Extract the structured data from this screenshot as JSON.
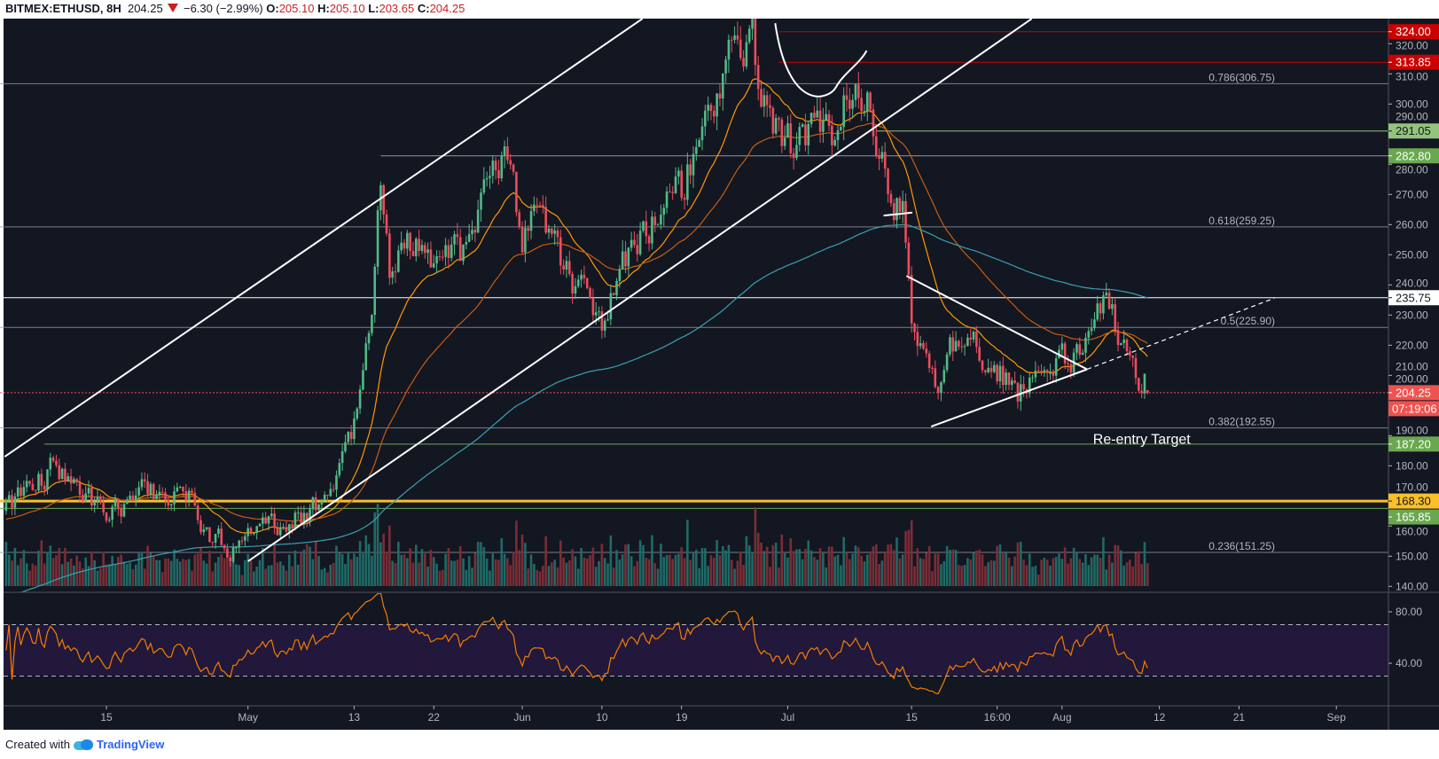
{
  "header": {
    "symbol": "BITMEX:ETHUSD, 8H",
    "last": "204.25",
    "change": "−6.30 (−2.99%)",
    "o_label": "O:",
    "o": "205.10",
    "h_label": "H:",
    "h": "205.10",
    "l_label": "L:",
    "l": "203.65",
    "c_label": "C:",
    "c": "204.25"
  },
  "footer": {
    "created_with": "Created with",
    "brand": "TradingView"
  },
  "colors": {
    "background": "#131722",
    "up": "#53b987",
    "down": "#eb4d5c",
    "ema_fast": "#ff9800",
    "ema_slow": "#c65d12",
    "ma_long": "#3aa0b0",
    "rsi": "#f57c00"
  },
  "chart_data": {
    "type": "candlestick",
    "title": "BITMEX:ETHUSD, 8H",
    "ylim": [
      137,
      326
    ],
    "price_ticks": [
      "140.00",
      "150.00",
      "160.00",
      "170.00",
      "180.00",
      "190.00",
      "200.00",
      "210.00",
      "220.00",
      "230.00",
      "240.00",
      "250.00",
      "260.00",
      "270.00",
      "280.00",
      "290.00",
      "300.00",
      "310.00",
      "320.00"
    ],
    "time_ticks": [
      {
        "label": "15",
        "date": "2019-04-15T00:00"
      },
      {
        "label": "May",
        "date": "2019-05-01T00:00"
      },
      {
        "label": "13",
        "date": "2019-05-13T00:00"
      },
      {
        "label": "22",
        "date": "2019-05-22T00:00"
      },
      {
        "label": "Jun",
        "date": "2019-06-01T00:00"
      },
      {
        "label": "10",
        "date": "2019-06-10T00:00"
      },
      {
        "label": "19",
        "date": "2019-06-19T00:00"
      },
      {
        "label": "Jul",
        "date": "2019-07-01T00:00"
      },
      {
        "label": "15",
        "date": "2019-07-15T00:00"
      },
      {
        "label": "16:00",
        "date": "2019-07-24T16:00"
      },
      {
        "label": "Aug",
        "date": "2019-08-01T00:00"
      },
      {
        "label": "12",
        "date": "2019-08-12T00:00"
      },
      {
        "label": "21",
        "date": "2019-08-21T00:00"
      },
      {
        "label": "Sep",
        "date": "2019-09-01T00:00"
      }
    ],
    "rsi_ticks": [
      "80.00",
      "40.00"
    ],
    "rsi_band": [
      30,
      70
    ],
    "price_anchors": [
      [
        "2019-04-03T16:00",
        165
      ],
      [
        "2019-04-09",
        180
      ],
      [
        "2019-04-12",
        172
      ],
      [
        "2019-04-15",
        165
      ],
      [
        "2019-04-20",
        172
      ],
      [
        "2019-04-25",
        168
      ],
      [
        "2019-04-27",
        155
      ],
      [
        "2019-04-29",
        153
      ],
      [
        "2019-05-02",
        158
      ],
      [
        "2019-05-06",
        160
      ],
      [
        "2019-05-09",
        168
      ],
      [
        "2019-05-11",
        175
      ],
      [
        "2019-05-13",
        193
      ],
      [
        "2019-05-15",
        235
      ],
      [
        "2019-05-16",
        272
      ],
      [
        "2019-05-17",
        245
      ],
      [
        "2019-05-19",
        255
      ],
      [
        "2019-05-22",
        245
      ],
      [
        "2019-05-25",
        250
      ],
      [
        "2019-05-28",
        270
      ],
      [
        "2019-05-30",
        282
      ],
      [
        "2019-06-01",
        255
      ],
      [
        "2019-06-03",
        265
      ],
      [
        "2019-06-06",
        245
      ],
      [
        "2019-06-10",
        228
      ],
      [
        "2019-06-13",
        250
      ],
      [
        "2019-06-16",
        262
      ],
      [
        "2019-06-19",
        270
      ],
      [
        "2019-06-21",
        290
      ],
      [
        "2019-06-23",
        308
      ],
      [
        "2019-06-27",
        322
      ],
      [
        "2019-06-28",
        300
      ],
      [
        "2019-06-30",
        290
      ],
      [
        "2019-07-02",
        285
      ],
      [
        "2019-07-04",
        295
      ],
      [
        "2019-07-06",
        290
      ],
      [
        "2019-07-08",
        305
      ],
      [
        "2019-07-10",
        305
      ],
      [
        "2019-07-11",
        285
      ],
      [
        "2019-07-13",
        270
      ],
      [
        "2019-07-14",
        265
      ],
      [
        "2019-07-15",
        230
      ],
      [
        "2019-07-18",
        200
      ],
      [
        "2019-07-19",
        220
      ],
      [
        "2019-07-21",
        225
      ],
      [
        "2019-07-24",
        215
      ],
      [
        "2019-07-27",
        205
      ],
      [
        "2019-07-30",
        210
      ],
      [
        "2019-08-02",
        215
      ],
      [
        "2019-08-04",
        222
      ],
      [
        "2019-08-06",
        234
      ],
      [
        "2019-08-08",
        222
      ],
      [
        "2019-08-09",
        215
      ],
      [
        "2019-08-10",
        210
      ],
      [
        "2019-08-10T16:00",
        204.25
      ]
    ],
    "last_candle": {
      "open": 205.1,
      "high": 205.1,
      "low": 203.65,
      "close": 204.25
    },
    "countdown": "07:19:06",
    "levels": [
      {
        "price": 324.0,
        "label": "324.00",
        "color": "#cc0000",
        "text_color": "#ffffff",
        "line": "#cc0000",
        "from": "2019-06-30T00:00"
      },
      {
        "price": 313.85,
        "label": "313.85",
        "color": "#cc0000",
        "text_color": "#ffffff",
        "line": "#cc0000",
        "from": "2019-06-30T00:00"
      },
      {
        "price": 306.75,
        "fib": "0.786(306.75)",
        "line": "#9598a1"
      },
      {
        "price": 291.05,
        "label": "291.05",
        "color": "#93c47d",
        "text_color": "#131722",
        "line": "#93c47d",
        "from": "2019-07-11T00:00"
      },
      {
        "price": 282.8,
        "label": "282.80",
        "color": "#6aa84f",
        "text_color": "#ffffff",
        "line": "#9598a1",
        "from": "2019-05-16T00:00"
      },
      {
        "price": 259.25,
        "fib": "0.618(259.25)",
        "line": "#9598a1"
      },
      {
        "price": 235.75,
        "label": "235.75",
        "color": "#ffffff",
        "text_color": "#131722",
        "line": "#ffffff"
      },
      {
        "price": 225.9,
        "fib": "0.5(225.90)",
        "line": "#9598a1"
      },
      {
        "price": 204.25,
        "label": "204.25",
        "color": "#ef5350",
        "text_color": "#ffffff",
        "line": "#ef5350",
        "dotted": true
      },
      {
        "price": 192.55,
        "fib": "0.382(192.55)",
        "line": "#9598a1"
      },
      {
        "price": 187.2,
        "label": "187.20",
        "color": "#6aa84f",
        "text_color": "#ffffff",
        "line": "#6aa84f",
        "from": "2019-04-08T00:00"
      },
      {
        "price": 168.3,
        "label": "168.30",
        "color": "#f9c02a",
        "text_color": "#131722",
        "line": "#f9c02a",
        "thick": true
      },
      {
        "price": 165.85,
        "label": "165.85",
        "color": "#6aa84f",
        "text_color": "#ffffff",
        "line": "#6aa84f"
      },
      {
        "price": 151.25,
        "fib": "0.236(151.25)",
        "line": "#9598a1"
      }
    ],
    "trendlines": [
      {
        "name": "upper-channel-line",
        "points": [
          [
            "2019-04-03T12:00",
            183
          ],
          [
            "2019-06-14T14:00",
            328.3
          ]
        ]
      },
      {
        "name": "lower-channel-line",
        "points": [
          [
            "2019-05-01T00:00",
            148.3
          ],
          [
            "2019-07-28T14:00",
            328.3
          ]
        ]
      },
      {
        "name": "flag-line",
        "points": [
          [
            "2019-07-11T20:00",
            263
          ],
          [
            "2019-07-15T02:00",
            264
          ]
        ]
      },
      {
        "name": "triangle-upper-line",
        "points": [
          [
            "2019-07-14T10:00",
            243
          ],
          [
            "2019-08-03T20:00",
            212
          ]
        ]
      },
      {
        "name": "triangle-lower-line",
        "points": [
          [
            "2019-07-17T05:00",
            193
          ],
          [
            "2019-08-03T20:00",
            212
          ]
        ]
      },
      {
        "name": "triangle-breakout-dashed-line",
        "dashed": true,
        "points": [
          [
            "2019-08-03T20:00",
            212
          ],
          [
            "2019-08-25T00:00",
            235.6
          ]
        ]
      }
    ],
    "cup_arc": [
      [
        "2019-06-29T14:00",
        326.8
      ],
      [
        "2019-07-04T16:00",
        304.2
      ],
      [
        "2019-07-09T22:00",
        317.7
      ]
    ],
    "annotations": [
      {
        "text": "Re-entry Target",
        "date": "2019-08-04T12:00",
        "price": 190
      }
    ]
  }
}
